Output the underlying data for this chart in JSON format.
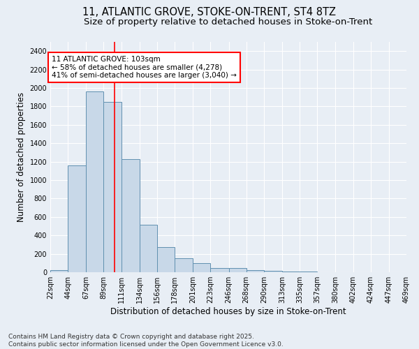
{
  "title_line1": "11, ATLANTIC GROVE, STOKE-ON-TRENT, ST4 8TZ",
  "title_line2": "Size of property relative to detached houses in Stoke-on-Trent",
  "xlabel": "Distribution of detached houses by size in Stoke-on-Trent",
  "ylabel": "Number of detached properties",
  "bin_labels": [
    "22sqm",
    "44sqm",
    "67sqm",
    "89sqm",
    "111sqm",
    "134sqm",
    "156sqm",
    "178sqm",
    "201sqm",
    "223sqm",
    "246sqm",
    "268sqm",
    "290sqm",
    "313sqm",
    "335sqm",
    "357sqm",
    "380sqm",
    "402sqm",
    "424sqm",
    "447sqm",
    "469sqm"
  ],
  "bin_edges": [
    22,
    44,
    67,
    89,
    111,
    134,
    156,
    178,
    201,
    223,
    246,
    268,
    290,
    313,
    335,
    357,
    380,
    402,
    424,
    447,
    469
  ],
  "bar_heights": [
    25,
    1160,
    1960,
    1850,
    1230,
    515,
    275,
    150,
    95,
    45,
    45,
    20,
    15,
    8,
    5,
    3,
    2,
    2,
    1,
    1,
    0
  ],
  "bar_color": "#c8d8e8",
  "bar_edge_color": "#6090b0",
  "bar_edge_width": 0.7,
  "red_line_x": 103,
  "annotation_line1": "11 ATLANTIC GROVE: 103sqm",
  "annotation_line2": "← 58% of detached houses are smaller (4,278)",
  "annotation_line3": "41% of semi-detached houses are larger (3,040) →",
  "annotation_box_color": "white",
  "annotation_box_edge_color": "red",
  "ylim": [
    0,
    2500
  ],
  "yticks": [
    0,
    200,
    400,
    600,
    800,
    1000,
    1200,
    1400,
    1600,
    1800,
    2000,
    2200,
    2400
  ],
  "background_color": "#e8eef5",
  "plot_bg_color": "#e8eef5",
  "grid_color": "white",
  "footer_line1": "Contains HM Land Registry data © Crown copyright and database right 2025.",
  "footer_line2": "Contains public sector information licensed under the Open Government Licence v3.0.",
  "title_fontsize": 10.5,
  "subtitle_fontsize": 9.5,
  "label_fontsize": 8.5,
  "tick_fontsize": 7,
  "annotation_fontsize": 7.5,
  "footer_fontsize": 6.5
}
